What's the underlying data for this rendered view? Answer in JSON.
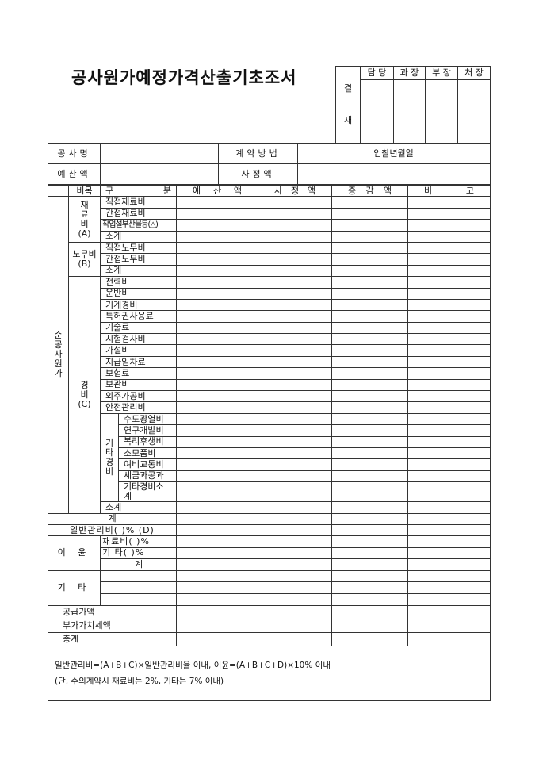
{
  "title": "공사원가예정가격산출기초조서",
  "approval": {
    "label_lines": [
      "결",
      "재"
    ],
    "roles": [
      "담 당",
      "과 장",
      "부 장",
      "처 장"
    ]
  },
  "info": {
    "project_name_label": "공사명",
    "contract_method_label": "계약방법",
    "bid_date_label": "입찰년월일",
    "budget_label": "예산액",
    "assessed_label": "사정액"
  },
  "table": {
    "headers": {
      "item": "비목",
      "category": [
        "구",
        "분"
      ],
      "budget": [
        "예",
        "산",
        "액"
      ],
      "assessed": [
        "사",
        "정",
        "액"
      ],
      "change": [
        "증",
        "감",
        "액"
      ],
      "remarks": [
        "비",
        "고"
      ]
    },
    "net_cost_label": [
      "순",
      "공",
      "사",
      "원",
      "가"
    ],
    "materials": {
      "label_lines": [
        "재",
        "료",
        "비",
        "(A)"
      ],
      "items": [
        "직접재료비",
        "간접재료비",
        "작업설부산물등(△)",
        "소계"
      ]
    },
    "labor": {
      "label_lines": [
        "노무비",
        "(B)"
      ],
      "items": [
        "직접노무비",
        "간접노무비",
        "소계"
      ]
    },
    "expenses": {
      "label_lines": [
        "경",
        "비",
        "(C)"
      ],
      "items": [
        "전력비",
        "운반비",
        "기계경비",
        "특허권사용료",
        "기술료",
        "시험검사비",
        "가설비",
        "지급임차료",
        "보험료",
        "보관비",
        "외주가공비",
        "안전관리비"
      ],
      "other": {
        "label_lines": [
          "기",
          "타",
          "경",
          "비"
        ],
        "items": [
          "수도광열비",
          "연구개발비",
          "복리후생비",
          "소모품비",
          "여비교통비",
          "세금과공과",
          "기타경비소계"
        ]
      },
      "subtotal": "소계"
    },
    "total": "계",
    "general_admin": "일반관리비(    )% (D)",
    "profit": {
      "label": "이 윤",
      "items": [
        "재료비(    )%",
        "기  타(    )%",
        "계"
      ]
    },
    "misc": {
      "label": "기 타"
    },
    "supply": "공급가액",
    "vat": "부가가치세액",
    "grand_total": "총계",
    "notes": [
      "일반관리비=(A+B+C)×일반관리비율 이내, 이윤=(A+B+C+D)×10% 이내",
      "(단, 수의계약시 재료비는 2%, 기타는 7% 이내)"
    ]
  }
}
